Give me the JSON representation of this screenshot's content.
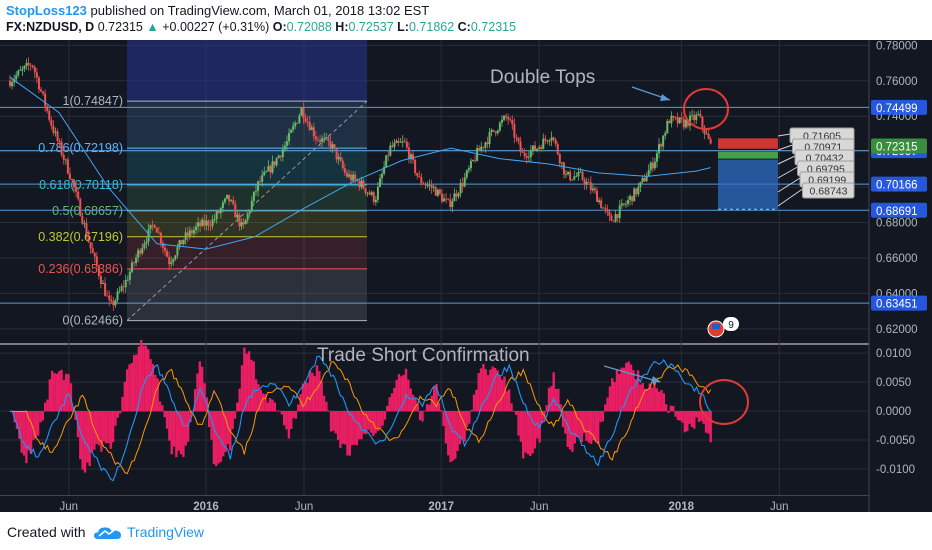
{
  "header": {
    "author": "StopLoss123",
    "published_text": "published on TradingView.com, March 01, 2018 13:02 EST",
    "symbol": "FX:NZDUSD, D",
    "last": "0.72315",
    "arrow": "▲",
    "change": "+0.00227 (+0.31%)",
    "o_label": "O:",
    "o": "0.72088",
    "h_label": "H:",
    "h": "0.72537",
    "l_label": "L:",
    "l": "0.71862",
    "c_label": "C:",
    "c": "0.72315"
  },
  "footer": {
    "created_with": "Created with",
    "brand": "TradingView",
    "logo_icon": "tradingview-cloud-icon"
  },
  "colors": {
    "background": "#131722",
    "grid": "#2a2e39",
    "axis_text": "#b2b5be",
    "up_candle": "#66bb6a",
    "down_candle": "#ef5350",
    "ma_line": "#42a5f5",
    "macd": "#2196f3",
    "signal": "#ff9800",
    "histogram": "#e91e63",
    "annotation_circle": "#e53935",
    "level_line": "#5b9bd5"
  },
  "chart_data": [
    {
      "type": "candlestick",
      "pane": "price",
      "symbol": "FX:NZDUSD",
      "interval": "D",
      "ylim": [
        0.612,
        0.783
      ],
      "x_ticks": [
        "Jun",
        "2016",
        "Jun",
        "2017",
        "Jun",
        "2018",
        "Jun"
      ],
      "y_ticks": [
        "0.78000",
        "0.76000",
        "0.74000",
        "0.72000",
        "0.70000",
        "0.68000",
        "0.66000",
        "0.64000",
        "0.62000"
      ],
      "price_tag": "0.72315",
      "horizontal_levels": [
        "0.74499",
        "0.72057",
        "0.70166",
        "0.68691",
        "0.63451"
      ],
      "fibonacci": [
        {
          "ratio": "1",
          "label": "1(0.74847)",
          "value": 0.74847,
          "color": "#b2b5be"
        },
        {
          "ratio": "0.786",
          "label": "0.786(0.72198)",
          "value": 0.72198,
          "color": "#64b5f6"
        },
        {
          "ratio": "0.618",
          "label": "0.618(0.70118)",
          "value": 0.70118,
          "color": "#26c6da"
        },
        {
          "ratio": "0.5",
          "label": "0.5(0.68657)",
          "value": 0.68657,
          "color": "#66bb6a"
        },
        {
          "ratio": "0.382",
          "label": "0.382(0.67196)",
          "value": 0.67196,
          "color": "#c0ca33"
        },
        {
          "ratio": "0.236",
          "label": "0.236(0.65386)",
          "value": 0.65386,
          "color": "#ef5350"
        },
        {
          "ratio": "0",
          "label": "0(0.62466)",
          "value": 0.62466,
          "color": "#b2b5be"
        }
      ],
      "position_tool": {
        "labels": [
          "0.71605",
          "0.70971",
          "0.70432",
          "0.69795",
          "0.69199",
          "0.68743"
        ],
        "stop_level": 0.7275,
        "entry_level": 0.7195,
        "target_level": 0.6875
      },
      "annotations": [
        "Double Tops"
      ],
      "events_badge": "9",
      "path": [
        [
          0,
          0.76
        ],
        [
          0.045,
          0.77
        ],
        [
          0.085,
          0.735
        ],
        [
          0.125,
          0.705
        ],
        [
          0.165,
          0.665
        ],
        [
          0.205,
          0.632
        ],
        [
          0.235,
          0.646
        ],
        [
          0.265,
          0.665
        ],
        [
          0.295,
          0.68
        ],
        [
          0.325,
          0.658
        ],
        [
          0.355,
          0.671
        ],
        [
          0.385,
          0.678
        ],
        [
          0.415,
          0.681
        ],
        [
          0.445,
          0.694
        ],
        [
          0.475,
          0.676
        ],
        [
          0.505,
          0.701
        ],
        [
          0.535,
          0.712
        ],
        [
          0.565,
          0.725
        ],
        [
          0.595,
          0.744
        ],
        [
          0.625,
          0.728
        ],
        [
          0.655,
          0.724
        ],
        [
          0.685,
          0.707
        ],
        [
          0.715,
          0.702
        ],
        [
          0.745,
          0.693
        ],
        [
          0.775,
          0.722
        ],
        [
          0.805,
          0.725
        ],
        [
          0.835,
          0.704
        ],
        [
          0.865,
          0.699
        ],
        [
          0.895,
          0.69
        ],
        [
          0.925,
          0.703
        ],
        [
          0.955,
          0.72
        ],
        [
          0.985,
          0.731
        ],
        [
          1.015,
          0.74
        ],
        [
          1.045,
          0.718
        ],
        [
          1.075,
          0.722
        ],
        [
          1.105,
          0.73
        ],
        [
          1.135,
          0.706
        ],
        [
          1.165,
          0.706
        ],
        [
          1.195,
          0.696
        ],
        [
          1.225,
          0.681
        ],
        [
          1.255,
          0.69
        ],
        [
          1.285,
          0.7
        ],
        [
          1.315,
          0.715
        ],
        [
          1.345,
          0.738
        ],
        [
          1.375,
          0.736
        ],
        [
          1.405,
          0.74
        ],
        [
          1.43,
          0.7232
        ]
      ],
      "ma_path": [
        [
          0,
          0.762
        ],
        [
          0.1,
          0.742
        ],
        [
          0.2,
          0.7
        ],
        [
          0.3,
          0.668
        ],
        [
          0.4,
          0.665
        ],
        [
          0.5,
          0.672
        ],
        [
          0.6,
          0.688
        ],
        [
          0.7,
          0.703
        ],
        [
          0.8,
          0.715
        ],
        [
          0.9,
          0.722
        ],
        [
          1.0,
          0.716
        ],
        [
          1.1,
          0.713
        ],
        [
          1.2,
          0.708
        ],
        [
          1.3,
          0.706
        ],
        [
          1.4,
          0.709
        ],
        [
          1.43,
          0.711
        ]
      ]
    },
    {
      "type": "macd",
      "pane": "oscillator",
      "ylim": [
        -0.0145,
        0.0114
      ],
      "y_ticks": [
        "0.0100",
        "0.0050",
        "0.0000",
        "-0.0050",
        "-0.0100"
      ],
      "annotations": [
        "Trade Short Confirmation"
      ],
      "path": [
        [
          0,
          0.0005
        ],
        [
          0.03,
          -0.006
        ],
        [
          0.06,
          -0.008
        ],
        [
          0.09,
          -0.002
        ],
        [
          0.12,
          0.003
        ],
        [
          0.15,
          -0.005
        ],
        [
          0.18,
          -0.009
        ],
        [
          0.21,
          -0.012
        ],
        [
          0.24,
          -0.006
        ],
        [
          0.27,
          0.004
        ],
        [
          0.3,
          0.008
        ],
        [
          0.33,
          0.002
        ],
        [
          0.36,
          -0.003
        ],
        [
          0.39,
          0.004
        ],
        [
          0.42,
          -0.004
        ],
        [
          0.45,
          -0.008
        ],
        [
          0.48,
          0.001
        ],
        [
          0.51,
          0.0045
        ],
        [
          0.54,
          0.005
        ],
        [
          0.57,
          0.001
        ],
        [
          0.6,
          0.005
        ],
        [
          0.63,
          0.0095
        ],
        [
          0.66,
          0.006
        ],
        [
          0.69,
          0.0
        ],
        [
          0.72,
          -0.003
        ],
        [
          0.75,
          -0.006
        ],
        [
          0.78,
          -0.003
        ],
        [
          0.81,
          0.003
        ],
        [
          0.84,
          0.001
        ],
        [
          0.87,
          0.0045
        ],
        [
          0.9,
          -0.003
        ],
        [
          0.93,
          -0.006
        ],
        [
          0.96,
          0.0
        ],
        [
          0.99,
          0.006
        ],
        [
          1.02,
          0.0075
        ],
        [
          1.05,
          0.001
        ],
        [
          1.08,
          -0.003
        ],
        [
          1.11,
          0.002
        ],
        [
          1.14,
          -0.003
        ],
        [
          1.17,
          -0.006
        ],
        [
          1.2,
          -0.009
        ],
        [
          1.23,
          -0.004
        ],
        [
          1.26,
          0.003
        ],
        [
          1.29,
          0.006
        ],
        [
          1.32,
          0.0085
        ],
        [
          1.35,
          0.008
        ],
        [
          1.38,
          0.005
        ],
        [
          1.41,
          0.003
        ],
        [
          1.43,
          0.0
        ]
      ]
    }
  ]
}
